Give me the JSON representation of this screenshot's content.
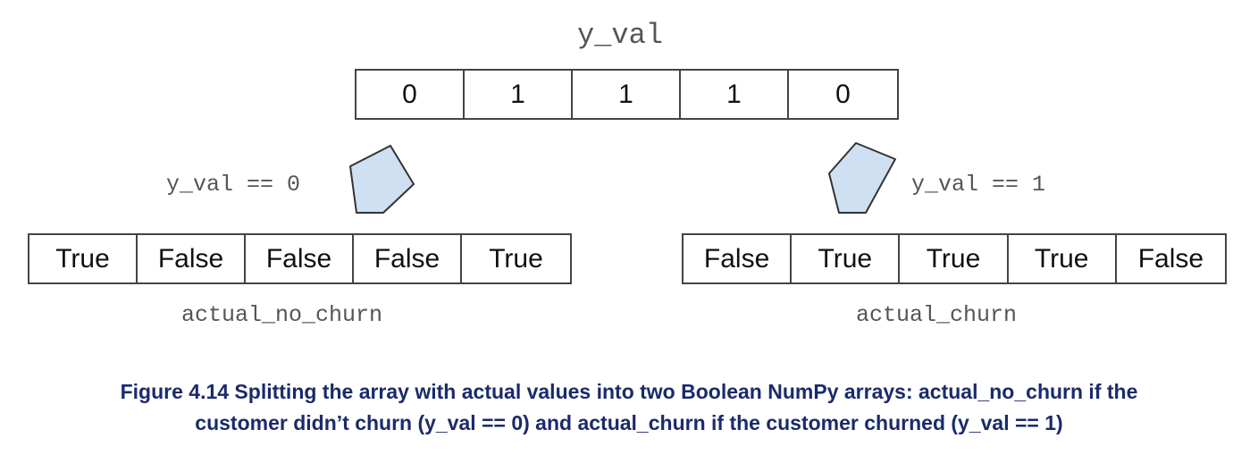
{
  "top": {
    "label": "y_val",
    "values": [
      "0",
      "1",
      "1",
      "1",
      "0"
    ]
  },
  "left": {
    "condition": "y_val == 0",
    "values": [
      "True",
      "False",
      "False",
      "False",
      "True"
    ],
    "name": "actual_no_churn"
  },
  "right": {
    "condition": "y_val == 1",
    "values": [
      "False",
      "True",
      "True",
      "True",
      "False"
    ],
    "name": "actual_churn"
  },
  "arrow_fill": "#cfe0f2",
  "caption": {
    "line1": "Figure 4.14 Splitting the array with actual values into two Boolean NumPy arrays: actual_no_churn if the",
    "line2": "customer didn’t churn (y_val == 0) and actual_churn if the customer churned (y_val == 1)"
  }
}
